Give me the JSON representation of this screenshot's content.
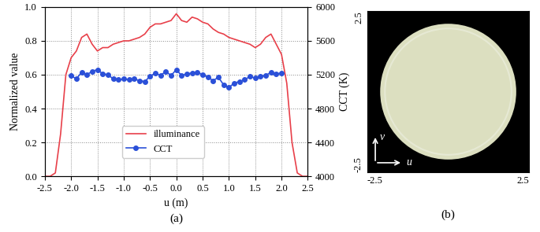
{
  "chart_data": [
    {
      "type": "line",
      "title": "(a)",
      "xlabel": "u (m)",
      "ylabel": "Normalized value",
      "y2label": "CCT (K)",
      "xlim": [
        -2.5,
        2.5
      ],
      "xticks": [
        -2.5,
        {
          "value": -2,
          "label": "-2.0"
        },
        -1.5,
        {
          "value": -1,
          "label": "-1.0"
        },
        -0.5,
        {
          "value": 0,
          "label": "0.0"
        },
        0.5,
        {
          "value": 1,
          "label": "1.0"
        },
        1.5,
        {
          "value": 2,
          "label": "2.0"
        },
        2.5
      ],
      "ylim": [
        0,
        1
      ],
      "yticks": [
        {
          "value": 0,
          "label": "0.0"
        },
        0.2,
        0.4,
        0.6,
        0.8,
        {
          "value": 1,
          "label": "1.0"
        }
      ],
      "y2lim": [
        4000,
        6000
      ],
      "y2ticks": [
        4000,
        4400,
        4800,
        5200,
        5600,
        6000
      ],
      "grid": true,
      "legend": "lower center",
      "series": [
        {
          "name": "illuminance",
          "color": "#e8404a",
          "line_style": "solid",
          "x": [
            -2.5,
            -2.4,
            -2.3,
            -2.2,
            -2.1,
            -2.0,
            -1.9,
            -1.8,
            -1.7,
            -1.6,
            -1.5,
            -1.4,
            -1.3,
            -1.2,
            -1.1,
            -1.0,
            -0.9,
            -0.8,
            -0.7,
            -0.6,
            -0.5,
            -0.4,
            -0.3,
            -0.2,
            -0.1,
            0.0,
            0.1,
            0.2,
            0.3,
            0.4,
            0.5,
            0.6,
            0.7,
            0.8,
            0.9,
            1.0,
            1.1,
            1.2,
            1.3,
            1.4,
            1.5,
            1.6,
            1.7,
            1.8,
            1.9,
            2.0,
            2.1,
            2.2,
            2.3,
            2.4,
            2.5
          ],
          "values": [
            0.0,
            0.0,
            0.02,
            0.25,
            0.6,
            0.7,
            0.74,
            0.82,
            0.84,
            0.78,
            0.74,
            0.76,
            0.76,
            0.78,
            0.79,
            0.8,
            0.8,
            0.81,
            0.82,
            0.84,
            0.88,
            0.9,
            0.9,
            0.91,
            0.92,
            0.96,
            0.92,
            0.91,
            0.94,
            0.93,
            0.91,
            0.9,
            0.87,
            0.85,
            0.84,
            0.82,
            0.81,
            0.8,
            0.79,
            0.78,
            0.76,
            0.78,
            0.82,
            0.84,
            0.78,
            0.72,
            0.55,
            0.2,
            0.02,
            0.0,
            0.0
          ]
        },
        {
          "name": "CCT",
          "color": "#2b50d8",
          "line_style": "solid",
          "marker": "o",
          "axis": "y2",
          "x": [
            -2.0,
            -1.9,
            -1.8,
            -1.7,
            -1.6,
            -1.5,
            -1.4,
            -1.3,
            -1.2,
            -1.1,
            -1.0,
            -0.9,
            -0.8,
            -0.7,
            -0.6,
            -0.5,
            -0.4,
            -0.3,
            -0.2,
            -0.1,
            0.0,
            0.1,
            0.2,
            0.3,
            0.4,
            0.5,
            0.6,
            0.7,
            0.8,
            0.9,
            1.0,
            1.1,
            1.2,
            1.3,
            1.4,
            1.5,
            1.6,
            1.7,
            1.8,
            1.9,
            2.0
          ],
          "values": [
            5190,
            5150,
            5230,
            5200,
            5240,
            5260,
            5210,
            5200,
            5150,
            5140,
            5150,
            5140,
            5150,
            5130,
            5120,
            5180,
            5220,
            5190,
            5240,
            5190,
            5260,
            5190,
            5210,
            5220,
            5230,
            5200,
            5170,
            5130,
            5170,
            5080,
            5050,
            5100,
            5120,
            5140,
            5180,
            5160,
            5180,
            5190,
            5230,
            5210,
            5220
          ]
        }
      ]
    },
    {
      "type": "image",
      "title": "(b)",
      "xlabel": "u",
      "ylabel": "v",
      "xlim": [
        -2.5,
        2.5
      ],
      "ylim": [
        -2.5,
        2.5
      ],
      "xticks": [
        -2.5,
        2.5
      ],
      "yticks": [
        -2.5,
        2.5
      ],
      "radius": 2.1,
      "color": "#dcdfc0"
    }
  ]
}
